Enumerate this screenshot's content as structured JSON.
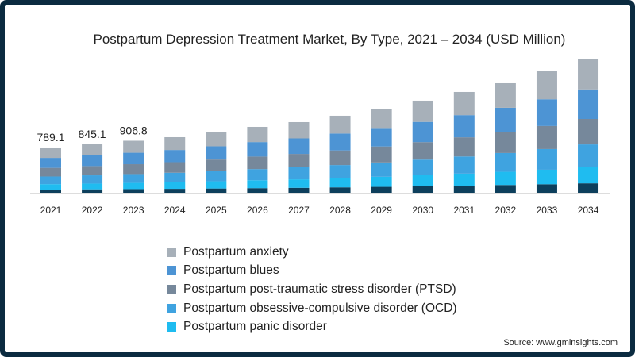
{
  "chart_data": {
    "type": "bar",
    "stacked": true,
    "title": "Postpartum Depression Treatment Market, By Type, 2021 – 2034 (USD Million)",
    "categories": [
      "2021",
      "2022",
      "2023",
      "2024",
      "2025",
      "2026",
      "2027",
      "2028",
      "2029",
      "2030",
      "2031",
      "2032",
      "2033",
      "2034"
    ],
    "series": [
      {
        "name": "",
        "color": "#0d3f5c",
        "values": [
          55,
          59,
          63,
          68,
          74,
          80,
          86,
          94,
          103,
          112,
          123,
          135,
          148,
          164
        ]
      },
      {
        "name": "Postpartum panic disorder",
        "color": "#1fbcf0",
        "values": [
          95,
          101,
          109,
          116,
          126,
          138,
          148,
          161,
          176,
          193,
          211,
          231,
          254,
          281
        ]
      },
      {
        "name": "Postpartum obsessive-compulsive disorder (OCD)",
        "color": "#3fa3e0",
        "values": [
          134,
          144,
          154,
          165,
          179,
          195,
          209,
          228,
          249,
          273,
          299,
          327,
          360,
          398
        ]
      },
      {
        "name": "Postpartum post-traumatic stress disorder (PTSD)",
        "color": "#76889b",
        "values": [
          150,
          161,
          172,
          184,
          200,
          218,
          234,
          255,
          279,
          305,
          334,
          366,
          402,
          444
        ]
      },
      {
        "name": "Postpartum blues",
        "color": "#4d94d4",
        "values": [
          174,
          186,
          200,
          213,
          231,
          253,
          271,
          295,
          323,
          353,
          387,
          423,
          466,
          515
        ]
      },
      {
        "name": "Postpartum anxiety",
        "color": "#a7b0b9",
        "values": [
          181,
          194,
          209,
          223,
          242,
          265,
          284,
          310,
          337,
          370,
          404,
          442,
          488,
          537
        ]
      }
    ],
    "data_labels": [
      "789.1",
      "845.1",
      "906.8"
    ],
    "legend_order": [
      5,
      4,
      3,
      2,
      1
    ],
    "xlabel": "",
    "ylabel": "",
    "ylim": [
      0,
      2400
    ],
    "grid": false,
    "legend_placement": "bottom-center"
  },
  "source": "Source: www.gminsights.com"
}
